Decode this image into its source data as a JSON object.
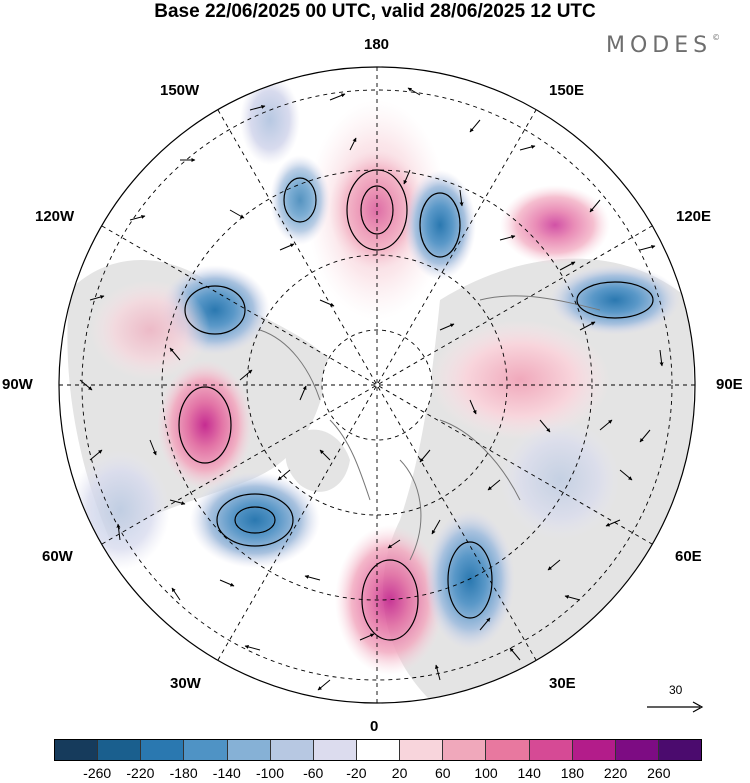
{
  "title": "Base 22/06/2025 00 UTC, valid 28/06/2025 12 UTC",
  "brand": "MODES",
  "brand_mark": "©",
  "longitude_labels": {
    "top": "180",
    "bottom": "0",
    "left": "90W",
    "right": "90E",
    "nw1": "150W",
    "nw2": "120W",
    "ne1": "150E",
    "ne2": "120E",
    "sw1": "60W",
    "sw2": "30W",
    "se1": "60E",
    "se2": "30E"
  },
  "reference_vector": {
    "label": "30"
  },
  "colorbar": {
    "ticks": [
      "-260",
      "-220",
      "-180",
      "-140",
      "-100",
      "-60",
      "-20",
      "20",
      "60",
      "100",
      "140",
      "180",
      "220",
      "260"
    ],
    "colors": [
      "#163b5c",
      "#1a5f8e",
      "#2a78b0",
      "#4f93c5",
      "#86b1d6",
      "#b7c8e2",
      "#dcdcee",
      "#ffffff",
      "#f8d5dc",
      "#f0a8bb",
      "#e8789f",
      "#d64a95",
      "#b31c8a",
      "#7d0c83",
      "#4b0b6e"
    ]
  },
  "colors": {
    "grid": "#000000",
    "coast": "#777777",
    "land": "#e4e4e4"
  }
}
